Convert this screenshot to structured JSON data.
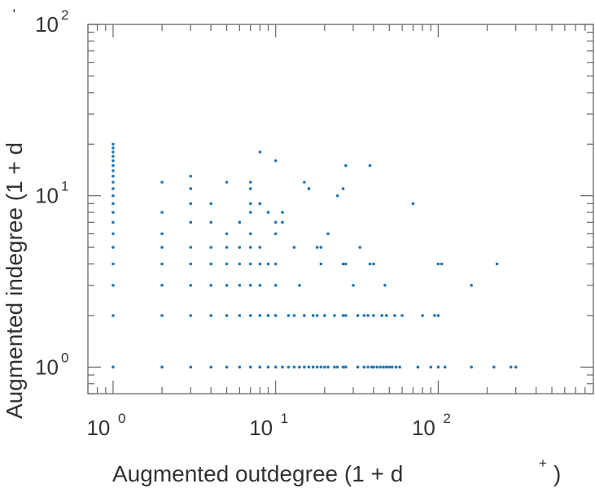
{
  "chart_data": {
    "type": "scatter",
    "xscale": "log",
    "yscale": "log",
    "xlim": [
      0.7,
      900
    ],
    "ylim": [
      0.7,
      100
    ],
    "xlabel": "Augmented outdegree (1 + d",
    "xlabel_sup": "+",
    "xlabel_close": ")",
    "ylabel": "Augmented indegree (1 + d",
    "ylabel_sup": "-",
    "x_ticks": [
      {
        "base": "10",
        "exp": "0",
        "value": 1
      },
      {
        "base": "10",
        "exp": "1",
        "value": 10
      },
      {
        "base": "10",
        "exp": "2",
        "value": 100
      }
    ],
    "y_ticks": [
      {
        "base": "10",
        "exp": "0",
        "value": 1
      },
      {
        "base": "10",
        "exp": "1",
        "value": 10
      },
      {
        "base": "10",
        "exp": "2",
        "value": 100
      }
    ],
    "grid": false,
    "marker_color": "#1f77b4",
    "points": [
      [
        1,
        1
      ],
      [
        1,
        2
      ],
      [
        1,
        3
      ],
      [
        1,
        4
      ],
      [
        1,
        5
      ],
      [
        1,
        6
      ],
      [
        1,
        7
      ],
      [
        1,
        8
      ],
      [
        1,
        9
      ],
      [
        1,
        10
      ],
      [
        1,
        11
      ],
      [
        1,
        12
      ],
      [
        1,
        13
      ],
      [
        1,
        14
      ],
      [
        1,
        15
      ],
      [
        1,
        16
      ],
      [
        1,
        17
      ],
      [
        1,
        18
      ],
      [
        1,
        19
      ],
      [
        1,
        20
      ],
      [
        2,
        1
      ],
      [
        2,
        2
      ],
      [
        2,
        3
      ],
      [
        2,
        4
      ],
      [
        2,
        5
      ],
      [
        2,
        6
      ],
      [
        2,
        8
      ],
      [
        2,
        12
      ],
      [
        3,
        1
      ],
      [
        3,
        2
      ],
      [
        3,
        3
      ],
      [
        3,
        4
      ],
      [
        3,
        5
      ],
      [
        3,
        7
      ],
      [
        3,
        9
      ],
      [
        3,
        11
      ],
      [
        3,
        13
      ],
      [
        4,
        1
      ],
      [
        4,
        2
      ],
      [
        4,
        3
      ],
      [
        4,
        4
      ],
      [
        4,
        5
      ],
      [
        4,
        7
      ],
      [
        4,
        9
      ],
      [
        5,
        1
      ],
      [
        5,
        2
      ],
      [
        5,
        3
      ],
      [
        5,
        4
      ],
      [
        5,
        5
      ],
      [
        5,
        6
      ],
      [
        5,
        12
      ],
      [
        6,
        1
      ],
      [
        6,
        2
      ],
      [
        6,
        3
      ],
      [
        6,
        4
      ],
      [
        6,
        5
      ],
      [
        6,
        7
      ],
      [
        7,
        1
      ],
      [
        7,
        2
      ],
      [
        7,
        3
      ],
      [
        7,
        4
      ],
      [
        7,
        5
      ],
      [
        7,
        6
      ],
      [
        7,
        8
      ],
      [
        7,
        9
      ],
      [
        7,
        11
      ],
      [
        7,
        12
      ],
      [
        8,
        1
      ],
      [
        8,
        2
      ],
      [
        8,
        3
      ],
      [
        8,
        4
      ],
      [
        8,
        5
      ],
      [
        8,
        9
      ],
      [
        8,
        18
      ],
      [
        9,
        1
      ],
      [
        9,
        2
      ],
      [
        9,
        4
      ],
      [
        9,
        8
      ],
      [
        10,
        1
      ],
      [
        10,
        2
      ],
      [
        10,
        3
      ],
      [
        10,
        4
      ],
      [
        10,
        6
      ],
      [
        10,
        7
      ],
      [
        10,
        16
      ],
      [
        11,
        1
      ],
      [
        11,
        7
      ],
      [
        11,
        8
      ],
      [
        12,
        1
      ],
      [
        12,
        2
      ],
      [
        13,
        1
      ],
      [
        13,
        2
      ],
      [
        13,
        5
      ],
      [
        14,
        1
      ],
      [
        14,
        3
      ],
      [
        15,
        1
      ],
      [
        15,
        2
      ],
      [
        15,
        12
      ],
      [
        16,
        1
      ],
      [
        16,
        11
      ],
      [
        17,
        1
      ],
      [
        17,
        2
      ],
      [
        18,
        1
      ],
      [
        18,
        2
      ],
      [
        18,
        5
      ],
      [
        19,
        1
      ],
      [
        19,
        4
      ],
      [
        19,
        5
      ],
      [
        20,
        1
      ],
      [
        20,
        2
      ],
      [
        21,
        1
      ],
      [
        21,
        6
      ],
      [
        23,
        1
      ],
      [
        23,
        2
      ],
      [
        24,
        1
      ],
      [
        24,
        10
      ],
      [
        26,
        1
      ],
      [
        26,
        2
      ],
      [
        26,
        4
      ],
      [
        26,
        11
      ],
      [
        27,
        1
      ],
      [
        27,
        2
      ],
      [
        27,
        4
      ],
      [
        27,
        15
      ],
      [
        30,
        3
      ],
      [
        32,
        1
      ],
      [
        32,
        2
      ],
      [
        33,
        5
      ],
      [
        35,
        1
      ],
      [
        35,
        2
      ],
      [
        37,
        1
      ],
      [
        37,
        2
      ],
      [
        38,
        4
      ],
      [
        38,
        15
      ],
      [
        39,
        1
      ],
      [
        40,
        1
      ],
      [
        40,
        2
      ],
      [
        40,
        4
      ],
      [
        42,
        1
      ],
      [
        44,
        1
      ],
      [
        45,
        2
      ],
      [
        46,
        1
      ],
      [
        47,
        3
      ],
      [
        48,
        1
      ],
      [
        48,
        2
      ],
      [
        50,
        1
      ],
      [
        52,
        1
      ],
      [
        54,
        2
      ],
      [
        55,
        1
      ],
      [
        58,
        1
      ],
      [
        60,
        2
      ],
      [
        70,
        9
      ],
      [
        75,
        1
      ],
      [
        80,
        2
      ],
      [
        90,
        1
      ],
      [
        95,
        2
      ],
      [
        100,
        1
      ],
      [
        100,
        2
      ],
      [
        100,
        4
      ],
      [
        105,
        4
      ],
      [
        110,
        1
      ],
      [
        160,
        1
      ],
      [
        160,
        3
      ],
      [
        220,
        1
      ],
      [
        230,
        4
      ],
      [
        280,
        1
      ],
      [
        300,
        1
      ]
    ]
  }
}
